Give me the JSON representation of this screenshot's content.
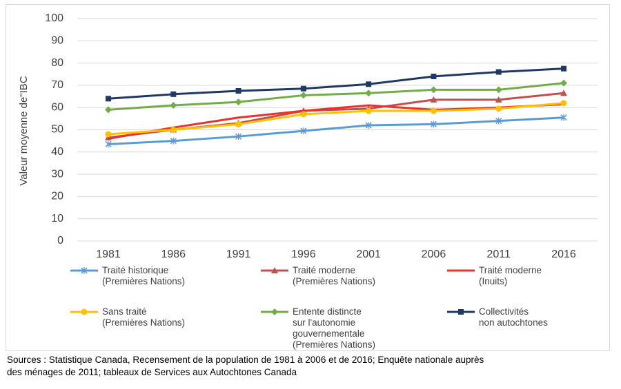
{
  "chart_data": {
    "type": "line",
    "ylabel": "Valeur moyenne de\"IBC",
    "ylim": [
      0,
      100
    ],
    "yticks": [
      0,
      10,
      20,
      30,
      40,
      50,
      60,
      70,
      80,
      90,
      100
    ],
    "categories": [
      "1981",
      "1986",
      "1991",
      "1996",
      "2001",
      "2006",
      "2011",
      "2016"
    ],
    "grid": true,
    "legend_position": "bottom",
    "series": [
      {
        "name_lines": [
          "Traité historique",
          "(Premières Nations)"
        ],
        "color": "#5b9bd5",
        "marker": "x",
        "values": [
          43.5,
          45,
          47,
          49.5,
          52,
          52.5,
          54,
          55.5
        ]
      },
      {
        "name_lines": [
          "Traité moderne",
          "(Premières Nations)"
        ],
        "color": "#c0504d",
        "marker": "triangle",
        "values": [
          46.5,
          50,
          53,
          58.5,
          59.5,
          63.5,
          63.5,
          66.5
        ]
      },
      {
        "name_lines": [
          "Traité moderne",
          "(Inuits)"
        ],
        "color": "#e8322b",
        "marker": "none",
        "values": [
          46,
          51,
          55.5,
          58.5,
          61,
          59,
          60,
          61.5
        ]
      },
      {
        "name_lines": [
          "Sans traité",
          "(Premières Nations)"
        ],
        "color": "#ffc000",
        "marker": "circle",
        "values": [
          48,
          50,
          52.5,
          57,
          58.5,
          58.5,
          59.5,
          62
        ]
      },
      {
        "name_lines": [
          "Entente distincte",
          "sur l'autonomie",
          "gouvernementale",
          "(Premières Nations)"
        ],
        "color": "#70ad47",
        "marker": "diamond",
        "values": [
          59,
          61,
          62.5,
          65.5,
          66.5,
          68,
          68,
          71
        ]
      },
      {
        "name_lines": [
          "Collectivités",
          "non autochtones"
        ],
        "color": "#1f3864",
        "marker": "square",
        "values": [
          64,
          66,
          67.5,
          68.5,
          70.5,
          74,
          76,
          77.5
        ]
      }
    ]
  },
  "source_lines": [
    "Sources : Statistique Canada, Recensement de la population de 1981 à 2006 et de 2016; Enquête nationale auprès",
    "des ménages de 2011; tableaux de Services aux Autochtones Canada"
  ]
}
